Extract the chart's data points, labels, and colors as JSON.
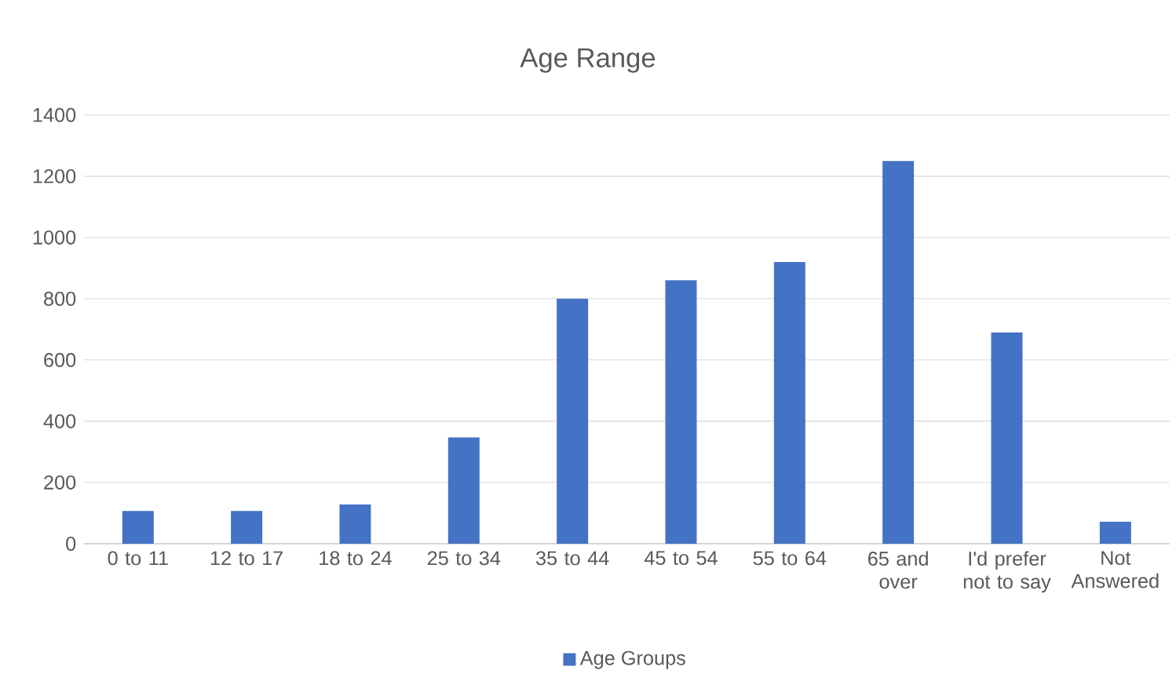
{
  "chart_data": {
    "type": "bar",
    "title": "Age Range",
    "categories": [
      "0 to 11",
      "12 to 17",
      "18 to 24",
      "25 to 34",
      "35 to 44",
      "45 to 54",
      "55 to 64",
      "65 and over",
      "I'd prefer not to say",
      "Not Answered"
    ],
    "series": [
      {
        "name": "Age Groups",
        "color": "#4472c4",
        "values": [
          107,
          107,
          128,
          347,
          800,
          860,
          920,
          1250,
          690,
          72
        ]
      }
    ],
    "ylim": [
      0,
      1400
    ],
    "yticks": [
      0,
      200,
      400,
      600,
      800,
      1000,
      1200,
      1400
    ],
    "grid": "y",
    "legend": "bottom"
  }
}
